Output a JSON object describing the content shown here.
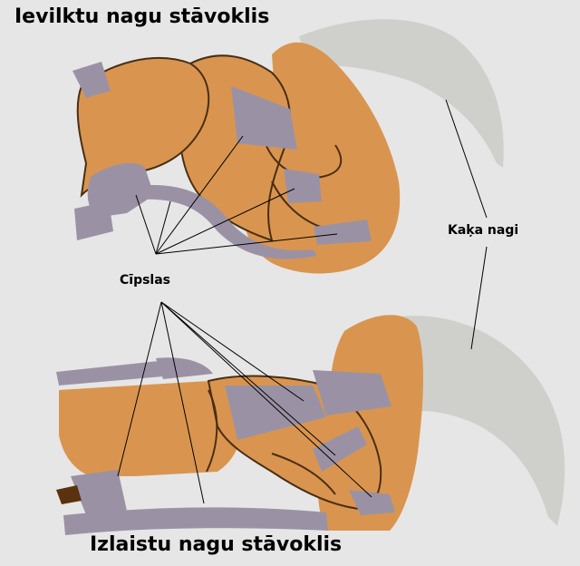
{
  "diagram": {
    "title_retracted": "Ievilktu nagu stāvoklis",
    "title_extended": "Izlaistu nagu stāvoklis",
    "label_tendons": "Cīpslas",
    "label_claws": "Kaķa nagi"
  },
  "colors": {
    "background": "#e6e6e6",
    "bone": "#d9954f",
    "bone_dark": "#c47f3e",
    "tendon": "#9a92a4",
    "claw": "#cfd0cc",
    "outline": "#4a2e14"
  }
}
